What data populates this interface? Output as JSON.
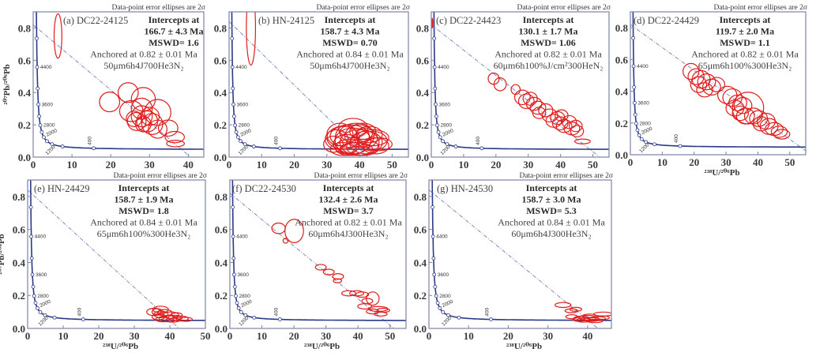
{
  "colors": {
    "ellipse": "#e01c1c",
    "concordia": "#2b3a86",
    "discordia": "#6f7fc0",
    "frame": "#7c84a8"
  },
  "concordia": {
    "age_labels": [
      "400",
      "1200",
      "2000",
      "2800",
      "3600",
      "4400"
    ],
    "marker_step_ma": 400
  },
  "chart_data": [
    {
      "type": "scatter",
      "label": "(a) DC22-24125",
      "note": "Data-point error ellipses are 2σ",
      "info": [
        "Intercepts at",
        "166.7 ± 4.3 Ma",
        "MSWD= 1.6",
        "Anchored at 0.82 ± 0.01 Ma",
        "50μm6h4J700He3N₂"
      ],
      "intercept_age_ma": 166.7,
      "anchor": 0.82,
      "xlabel": "",
      "ylabel": "²⁰⁷Pb/²⁰⁶Pb",
      "xlim": [
        0,
        44
      ],
      "ylim": [
        0,
        0.9
      ],
      "xticks": [
        "0",
        "10",
        "20",
        "30",
        "40"
      ],
      "yticks": [
        "0.0",
        "0.2",
        "0.4",
        "0.6",
        "0.8"
      ],
      "ellipses": [
        [
          6.4,
          0.75,
          1.0,
          0.137
        ],
        [
          19.7,
          0.342,
          2.6,
          0.061
        ],
        [
          24.5,
          0.4,
          2.6,
          0.061
        ],
        [
          28.4,
          0.358,
          3.1,
          0.073
        ],
        [
          32.1,
          0.277,
          3.4,
          0.08
        ],
        [
          25.3,
          0.285,
          3.0,
          0.065
        ],
        [
          28.0,
          0.253,
          2.7,
          0.065
        ],
        [
          29.4,
          0.221,
          2.7,
          0.065
        ],
        [
          26.7,
          0.221,
          2.4,
          0.056
        ],
        [
          30.7,
          0.205,
          2.7,
          0.065
        ],
        [
          32.1,
          0.173,
          2.4,
          0.056
        ],
        [
          28.0,
          0.3,
          2.7,
          0.065
        ],
        [
          26.0,
          0.237,
          2.0,
          0.048
        ],
        [
          30.1,
          0.253,
          2.4,
          0.056
        ],
        [
          28.4,
          0.205,
          2.0,
          0.048
        ],
        [
          34.8,
          0.18,
          2.5,
          0.05
        ],
        [
          36.5,
          0.124,
          2.5,
          0.035
        ],
        [
          36.7,
          0.084,
          2.3,
          0.02
        ]
      ]
    },
    {
      "type": "scatter",
      "label": "(b) HN-24125",
      "note": "Data-point error ellipses are 2σ",
      "info": [
        "Intercepts at",
        "158.7 ± 4.3 Ma",
        "MSWD= 0.70",
        "Anchored at 0.84 ± 0.01 Ma",
        "50μm6h4J700He3N₂"
      ],
      "intercept_age_ma": 158.7,
      "anchor": 0.84,
      "xlabel": "",
      "ylabel": "",
      "xlim": [
        0,
        55
      ],
      "ylim": [
        0,
        0.9
      ],
      "xticks": [
        "0",
        "10",
        "20",
        "30",
        "40",
        "50"
      ],
      "yticks": [
        "0.0",
        "0.2",
        "0.4",
        "0.6",
        "0.8"
      ],
      "ellipses": [
        [
          6.7,
          0.8,
          1.4,
          0.23
        ],
        [
          35,
          0.12,
          5,
          0.07
        ],
        [
          38,
          0.1,
          5.5,
          0.08
        ],
        [
          40,
          0.13,
          4.5,
          0.07
        ],
        [
          36,
          0.08,
          4,
          0.06
        ],
        [
          42,
          0.09,
          5,
          0.07
        ],
        [
          44,
          0.1,
          4.5,
          0.06
        ],
        [
          39,
          0.15,
          5,
          0.06
        ],
        [
          33,
          0.11,
          3.5,
          0.06
        ],
        [
          37,
          0.06,
          4.5,
          0.05
        ],
        [
          41,
          0.06,
          5,
          0.05
        ],
        [
          45,
          0.07,
          4,
          0.05
        ],
        [
          34,
          0.14,
          4,
          0.07
        ],
        [
          43,
          0.14,
          4,
          0.05
        ],
        [
          38,
          0.18,
          4.5,
          0.06
        ],
        [
          40,
          0.09,
          6,
          0.08
        ],
        [
          36,
          0.11,
          3.5,
          0.09
        ],
        [
          46,
          0.08,
          4,
          0.04
        ],
        [
          32,
          0.08,
          3,
          0.05
        ],
        [
          39,
          0.05,
          5,
          0.04
        ],
        [
          42,
          0.12,
          3.5,
          0.06
        ],
        [
          37,
          0.13,
          6,
          0.07
        ],
        [
          35,
          0.05,
          4,
          0.04
        ],
        [
          44,
          0.12,
          5,
          0.05
        ],
        [
          41,
          0.16,
          4,
          0.05
        ]
      ]
    },
    {
      "type": "scatter",
      "label": "(c) DC22-24423",
      "note": "Data-point error ellipses are 2σ",
      "info": [
        "Intercepts at",
        "130.1 ± 1.7 Ma",
        "MSWD= 1.06",
        "Anchored at 0.82 ± 0.01 Ma",
        "60μm6h100%J/cm²300HeN₂"
      ],
      "intercept_age_ma": 130.1,
      "anchor": 0.82,
      "xlabel": "",
      "ylabel": "",
      "xlim": [
        0,
        55
      ],
      "ylim": [
        0,
        0.9
      ],
      "xticks": [
        "0",
        "10",
        "20",
        "30",
        "40",
        "50"
      ],
      "yticks": [
        "0.0",
        "0.2",
        "0.4",
        "0.6",
        "0.8"
      ],
      "ellipses": [
        [
          0.3,
          0.83,
          0.15,
          0.03
        ],
        [
          19.3,
          0.486,
          1.7,
          0.035
        ],
        [
          21.3,
          0.451,
          1.9,
          0.04
        ],
        [
          26.1,
          0.419,
          1.4,
          0.03
        ],
        [
          28.2,
          0.37,
          2.4,
          0.045
        ],
        [
          29.4,
          0.346,
          2.4,
          0.045
        ],
        [
          30.6,
          0.362,
          2.2,
          0.04
        ],
        [
          31.8,
          0.33,
          2.4,
          0.04
        ],
        [
          33.0,
          0.306,
          2.4,
          0.04
        ],
        [
          33.4,
          0.274,
          2.0,
          0.035
        ],
        [
          35.4,
          0.29,
          2.2,
          0.04
        ],
        [
          36.7,
          0.258,
          2.4,
          0.04
        ],
        [
          37.9,
          0.225,
          2.4,
          0.04
        ],
        [
          39.1,
          0.242,
          2.2,
          0.04
        ],
        [
          39.9,
          0.209,
          2.4,
          0.04
        ],
        [
          40.3,
          0.258,
          2.0,
          0.035
        ],
        [
          41.1,
          0.193,
          2.4,
          0.04
        ],
        [
          42.7,
          0.217,
          2.2,
          0.04
        ],
        [
          43.5,
          0.177,
          2.4,
          0.04
        ],
        [
          44.7,
          0.193,
          2.0,
          0.035
        ],
        [
          45.1,
          0.161,
          2.0,
          0.035
        ],
        [
          46.8,
          0.097,
          2.4,
          0.015
        ]
      ]
    },
    {
      "type": "scatter",
      "label": "(d) DC22-24429",
      "note": "Data-point error ellipses are 2σ",
      "info": [
        "Intercepts at",
        "119.7 ± 2.0 Ma",
        "MSWD= 1.1",
        "Anchored at 0.82 ± 0.01 Ma",
        "65μm6h100%300He3N₂"
      ],
      "intercept_age_ma": 119.7,
      "anchor": 0.82,
      "xlabel": "²³⁸U/²⁰⁶Pb",
      "ylabel": "",
      "xlim": [
        0,
        55
      ],
      "ylim": [
        0,
        0.9
      ],
      "xticks": [
        "0",
        "10",
        "20",
        "30",
        "40",
        "50"
      ],
      "yticks": [
        "0.0",
        "0.2",
        "0.4",
        "0.6",
        "0.8"
      ],
      "ellipses": [
        [
          19.0,
          0.525,
          2.5,
          0.05
        ],
        [
          20.6,
          0.492,
          2.5,
          0.05
        ],
        [
          22.2,
          0.475,
          2.8,
          0.055
        ],
        [
          21.4,
          0.442,
          2.5,
          0.05
        ],
        [
          23.9,
          0.459,
          2.8,
          0.05
        ],
        [
          25.5,
          0.426,
          2.8,
          0.05
        ],
        [
          23.3,
          0.409,
          2.5,
          0.045
        ],
        [
          27.1,
          0.442,
          2.5,
          0.045
        ],
        [
          30.4,
          0.376,
          3.0,
          0.055
        ],
        [
          32.0,
          0.36,
          3.0,
          0.055
        ],
        [
          33.7,
          0.327,
          2.8,
          0.05
        ],
        [
          32.8,
          0.294,
          2.8,
          0.05
        ],
        [
          35.3,
          0.31,
          2.8,
          0.05
        ],
        [
          36.9,
          0.294,
          4.9,
          0.1
        ],
        [
          34.5,
          0.261,
          2.5,
          0.045
        ],
        [
          36.1,
          0.244,
          2.8,
          0.05
        ],
        [
          38.6,
          0.244,
          2.8,
          0.05
        ],
        [
          40.2,
          0.228,
          2.8,
          0.05
        ],
        [
          41.0,
          0.195,
          2.5,
          0.045
        ],
        [
          42.6,
          0.211,
          2.8,
          0.05
        ],
        [
          43.5,
          0.178,
          2.8,
          0.05
        ],
        [
          45.1,
          0.162,
          2.8,
          0.04
        ],
        [
          46.7,
          0.145,
          2.5,
          0.035
        ],
        [
          47.5,
          0.129,
          2.5,
          0.03
        ]
      ]
    },
    {
      "type": "scatter",
      "label": "(e) HN-24429",
      "note": "Data-point error ellipses are 2σ",
      "info": [
        "Intercepts at",
        "158.7 ± 1.9 Ma",
        "MSWD= 1.8",
        "Anchored at 0.84 ± 0.01 Ma",
        "65μm6h100%300He3N₂"
      ],
      "intercept_age_ma": 158.7,
      "anchor": 0.84,
      "xlabel": "²³⁸U/²⁰⁶Pb",
      "ylabel": "²⁰⁷Pb/²⁰⁶Pb",
      "xlim": [
        0,
        50
      ],
      "ylim": [
        0,
        0.9
      ],
      "xticks": [
        "0",
        "10",
        "20",
        "30",
        "40",
        "50"
      ],
      "yticks": [
        "0.0",
        "0.2",
        "0.4",
        "0.6",
        "0.8"
      ],
      "ellipses": [
        [
          35.5,
          0.1,
          2,
          0.022
        ],
        [
          37.4,
          0.115,
          2.2,
          0.02
        ],
        [
          38.6,
          0.095,
          2,
          0.02
        ],
        [
          40.3,
          0.08,
          2.2,
          0.02
        ],
        [
          36.8,
          0.07,
          1.8,
          0.018
        ],
        [
          39.5,
          0.06,
          2.5,
          0.02
        ],
        [
          41.5,
          0.065,
          2,
          0.015
        ],
        [
          43,
          0.06,
          2.2,
          0.015
        ],
        [
          38,
          0.055,
          2,
          0.015
        ],
        [
          40.8,
          0.05,
          2,
          0.012
        ],
        [
          44.5,
          0.055,
          1.8,
          0.012
        ],
        [
          37.5,
          0.085,
          2,
          0.02
        ],
        [
          42,
          0.08,
          1.5,
          0.015
        ],
        [
          36.5,
          0.1,
          1.5,
          0.02
        ]
      ]
    },
    {
      "type": "scatter",
      "label": "(f) DC22-24530",
      "note": "Data-point error ellipses are 2σ",
      "info": [
        "Intercepts at",
        "132.4 ± 2.6 Ma",
        "MSWD= 3.7",
        "Anchored at 0.82 ± 0.01 Ma",
        "60μm6h4J300He3N₂"
      ],
      "intercept_age_ma": 132.4,
      "anchor": 0.82,
      "xlabel": "²³⁸U/²⁰⁶Pb",
      "ylabel": "",
      "xlim": [
        0,
        55
      ],
      "ylim": [
        0,
        0.9
      ],
      "xticks": [
        "0",
        "10",
        "20",
        "30",
        "40",
        "50"
      ],
      "yticks": [
        "0.0",
        "0.2",
        "0.4",
        "0.6",
        "0.8"
      ],
      "ellipses": [
        [
          15.2,
          0.607,
          2.1,
          0.032
        ],
        [
          20.1,
          0.591,
          2.9,
          0.071
        ],
        [
          17.4,
          0.532,
          0.8,
          0.015
        ],
        [
          28.4,
          0.371,
          1.7,
          0.017
        ],
        [
          30.9,
          0.342,
          1.7,
          0.017
        ],
        [
          33.8,
          0.315,
          1.7,
          0.017
        ],
        [
          33.6,
          0.289,
          1.3,
          0.012
        ],
        [
          37.1,
          0.213,
          2.2,
          0.016
        ],
        [
          39.6,
          0.213,
          2.2,
          0.016
        ],
        [
          41.3,
          0.205,
          2.0,
          0.016
        ],
        [
          42.9,
          0.166,
          1.7,
          0.016
        ],
        [
          44.6,
          0.181,
          2.0,
          0.04
        ],
        [
          42.1,
          0.134,
          2.2,
          0.016
        ],
        [
          46.3,
          0.118,
          3.0,
          0.015
        ],
        [
          44.6,
          0.103,
          2.0,
          0.015
        ],
        [
          47.9,
          0.11,
          2.0,
          0.012
        ],
        [
          47.1,
          0.087,
          2.0,
          0.012
        ]
      ]
    },
    {
      "type": "scatter",
      "label": "(g) HN-24530",
      "note": "Data-point error ellipses are 2σ",
      "info": [
        "Intercepts at",
        "158.7 ± 3.0 Ma",
        "MSWD= 5.3",
        "Anchored at 0.84 ± 0.01 Ma",
        "60μm6h4J300He3N₂"
      ],
      "intercept_age_ma": 158.7,
      "anchor": 0.84,
      "xlabel": "²³⁸U/²⁰⁶Pb",
      "ylabel": "",
      "xlim": [
        0,
        46
      ],
      "ylim": [
        0,
        0.9
      ],
      "xticks": [
        "0",
        "10",
        "20",
        "30",
        "40"
      ],
      "yticks": [
        "0.0",
        "0.2",
        "0.4",
        "0.6",
        "0.8"
      ],
      "ellipses": [
        [
          33.8,
          0.142,
          2,
          0.015
        ],
        [
          35.9,
          0.107,
          1.6,
          0.012
        ],
        [
          37.0,
          0.116,
          1.5,
          0.012
        ],
        [
          36.0,
          0.071,
          1.5,
          0.012
        ],
        [
          43.9,
          0.087,
          2.4,
          0.012
        ],
        [
          38.5,
          0.06,
          2,
          0.015
        ],
        [
          40,
          0.065,
          2.2,
          0.015
        ],
        [
          41,
          0.055,
          2,
          0.012
        ],
        [
          42.5,
          0.06,
          2,
          0.012
        ],
        [
          39,
          0.05,
          1.8,
          0.012
        ],
        [
          40.5,
          0.075,
          1.8,
          0.012
        ],
        [
          44,
          0.065,
          1.5,
          0.01
        ],
        [
          37.8,
          0.055,
          1.5,
          0.012
        ],
        [
          41.8,
          0.045,
          2,
          0.01
        ]
      ]
    }
  ]
}
